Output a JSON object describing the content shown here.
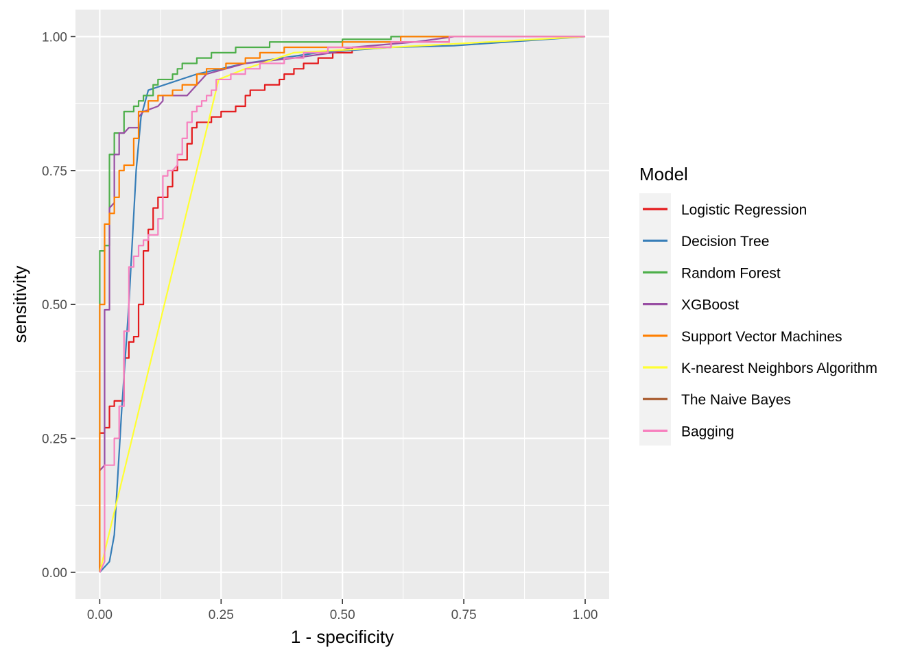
{
  "chart_data": {
    "type": "line",
    "xlabel": "1 - specificity",
    "ylabel": "sensitivity",
    "xlim": [
      0,
      1
    ],
    "ylim": [
      0,
      1
    ],
    "x_ticks": [
      "0.00",
      "0.25",
      "0.50",
      "0.75",
      "1.00"
    ],
    "y_ticks": [
      "0.00",
      "0.25",
      "0.50",
      "0.75",
      "1.00"
    ],
    "grid": true,
    "legend": {
      "title": "Model",
      "placement": "right"
    },
    "series": [
      {
        "name": "Logistic Regression",
        "color": "#E41A1C",
        "points": [
          [
            0,
            0
          ],
          [
            0,
            0.26
          ],
          [
            0.01,
            0.26
          ],
          [
            0.01,
            0.27
          ],
          [
            0.02,
            0.27
          ],
          [
            0.02,
            0.31
          ],
          [
            0.03,
            0.31
          ],
          [
            0.03,
            0.32
          ],
          [
            0.05,
            0.32
          ],
          [
            0.05,
            0.4
          ],
          [
            0.06,
            0.4
          ],
          [
            0.06,
            0.43
          ],
          [
            0.07,
            0.43
          ],
          [
            0.07,
            0.44
          ],
          [
            0.08,
            0.44
          ],
          [
            0.08,
            0.5
          ],
          [
            0.09,
            0.5
          ],
          [
            0.09,
            0.6
          ],
          [
            0.1,
            0.6
          ],
          [
            0.1,
            0.64
          ],
          [
            0.11,
            0.64
          ],
          [
            0.11,
            0.68
          ],
          [
            0.12,
            0.68
          ],
          [
            0.12,
            0.7
          ],
          [
            0.14,
            0.7
          ],
          [
            0.14,
            0.72
          ],
          [
            0.15,
            0.72
          ],
          [
            0.15,
            0.75
          ],
          [
            0.16,
            0.75
          ],
          [
            0.16,
            0.77
          ],
          [
            0.18,
            0.77
          ],
          [
            0.18,
            0.8
          ],
          [
            0.19,
            0.8
          ],
          [
            0.19,
            0.83
          ],
          [
            0.2,
            0.83
          ],
          [
            0.2,
            0.84
          ],
          [
            0.23,
            0.84
          ],
          [
            0.23,
            0.85
          ],
          [
            0.25,
            0.85
          ],
          [
            0.25,
            0.86
          ],
          [
            0.28,
            0.86
          ],
          [
            0.28,
            0.87
          ],
          [
            0.3,
            0.87
          ],
          [
            0.3,
            0.89
          ],
          [
            0.31,
            0.89
          ],
          [
            0.31,
            0.9
          ],
          [
            0.34,
            0.9
          ],
          [
            0.34,
            0.91
          ],
          [
            0.37,
            0.91
          ],
          [
            0.37,
            0.92
          ],
          [
            0.38,
            0.92
          ],
          [
            0.38,
            0.93
          ],
          [
            0.4,
            0.93
          ],
          [
            0.4,
            0.94
          ],
          [
            0.42,
            0.94
          ],
          [
            0.42,
            0.95
          ],
          [
            0.45,
            0.95
          ],
          [
            0.45,
            0.96
          ],
          [
            0.48,
            0.96
          ],
          [
            0.48,
            0.97
          ],
          [
            0.52,
            0.97
          ],
          [
            0.52,
            0.98
          ],
          [
            0.6,
            0.98
          ],
          [
            0.6,
            0.99
          ],
          [
            0.72,
            0.99
          ],
          [
            0.72,
            1.0
          ],
          [
            1,
            1
          ]
        ]
      },
      {
        "name": "Decision Tree",
        "color": "#377EB8",
        "points": [
          [
            0,
            0
          ],
          [
            0.02,
            0.02
          ],
          [
            0.03,
            0.07
          ],
          [
            0.045,
            0.3
          ],
          [
            0.06,
            0.5
          ],
          [
            0.075,
            0.75
          ],
          [
            0.085,
            0.85
          ],
          [
            0.1,
            0.9
          ],
          [
            0.2,
            0.93
          ],
          [
            0.3,
            0.95
          ],
          [
            0.45,
            0.97
          ],
          [
            0.6,
            0.98
          ],
          [
            0.73,
            0.983
          ],
          [
            1,
            1
          ]
        ]
      },
      {
        "name": "Random Forest",
        "color": "#4DAF4A",
        "points": [
          [
            0,
            0
          ],
          [
            0,
            0.6
          ],
          [
            0.01,
            0.6
          ],
          [
            0.01,
            0.61
          ],
          [
            0.02,
            0.61
          ],
          [
            0.02,
            0.78
          ],
          [
            0.03,
            0.78
          ],
          [
            0.03,
            0.82
          ],
          [
            0.05,
            0.82
          ],
          [
            0.05,
            0.86
          ],
          [
            0.06,
            0.86
          ],
          [
            0.07,
            0.86
          ],
          [
            0.07,
            0.87
          ],
          [
            0.08,
            0.87
          ],
          [
            0.08,
            0.88
          ],
          [
            0.09,
            0.88
          ],
          [
            0.09,
            0.89
          ],
          [
            0.11,
            0.89
          ],
          [
            0.11,
            0.91
          ],
          [
            0.12,
            0.91
          ],
          [
            0.12,
            0.92
          ],
          [
            0.15,
            0.92
          ],
          [
            0.15,
            0.93
          ],
          [
            0.16,
            0.93
          ],
          [
            0.16,
            0.94
          ],
          [
            0.17,
            0.94
          ],
          [
            0.17,
            0.95
          ],
          [
            0.2,
            0.95
          ],
          [
            0.2,
            0.96
          ],
          [
            0.23,
            0.96
          ],
          [
            0.23,
            0.97
          ],
          [
            0.28,
            0.97
          ],
          [
            0.28,
            0.98
          ],
          [
            0.35,
            0.98
          ],
          [
            0.35,
            0.99
          ],
          [
            0.5,
            0.99
          ],
          [
            0.5,
            0.995
          ],
          [
            0.6,
            0.995
          ],
          [
            0.6,
            1.0
          ],
          [
            1,
            1
          ]
        ]
      },
      {
        "name": "XGBoost",
        "color": "#984EA3",
        "points": [
          [
            0,
            0
          ],
          [
            0,
            0.19
          ],
          [
            0.01,
            0.2
          ],
          [
            0.01,
            0.49
          ],
          [
            0.02,
            0.49
          ],
          [
            0.02,
            0.68
          ],
          [
            0.03,
            0.69
          ],
          [
            0.03,
            0.78
          ],
          [
            0.04,
            0.78
          ],
          [
            0.04,
            0.82
          ],
          [
            0.05,
            0.82
          ],
          [
            0.06,
            0.83
          ],
          [
            0.08,
            0.83
          ],
          [
            0.08,
            0.85
          ],
          [
            0.09,
            0.86
          ],
          [
            0.12,
            0.87
          ],
          [
            0.13,
            0.88
          ],
          [
            0.13,
            0.89
          ],
          [
            0.18,
            0.89
          ],
          [
            0.2,
            0.91
          ],
          [
            0.22,
            0.93
          ],
          [
            0.3,
            0.95
          ],
          [
            0.4,
            0.96
          ],
          [
            0.48,
            0.97
          ],
          [
            0.52,
            0.98
          ],
          [
            0.65,
            0.99
          ],
          [
            0.73,
            1.0
          ],
          [
            1,
            1
          ]
        ]
      },
      {
        "name": "Support Vector Machines",
        "color": "#FF7F00",
        "points": [
          [
            0,
            0
          ],
          [
            0,
            0.5
          ],
          [
            0.01,
            0.5
          ],
          [
            0.01,
            0.65
          ],
          [
            0.02,
            0.65
          ],
          [
            0.02,
            0.67
          ],
          [
            0.03,
            0.67
          ],
          [
            0.03,
            0.7
          ],
          [
            0.04,
            0.7
          ],
          [
            0.04,
            0.75
          ],
          [
            0.05,
            0.75
          ],
          [
            0.05,
            0.76
          ],
          [
            0.06,
            0.76
          ],
          [
            0.07,
            0.76
          ],
          [
            0.07,
            0.81
          ],
          [
            0.08,
            0.81
          ],
          [
            0.08,
            0.86
          ],
          [
            0.1,
            0.86
          ],
          [
            0.1,
            0.88
          ],
          [
            0.12,
            0.88
          ],
          [
            0.12,
            0.89
          ],
          [
            0.15,
            0.89
          ],
          [
            0.15,
            0.9
          ],
          [
            0.17,
            0.9
          ],
          [
            0.17,
            0.91
          ],
          [
            0.2,
            0.91
          ],
          [
            0.2,
            0.93
          ],
          [
            0.22,
            0.93
          ],
          [
            0.22,
            0.94
          ],
          [
            0.26,
            0.94
          ],
          [
            0.26,
            0.95
          ],
          [
            0.3,
            0.95
          ],
          [
            0.3,
            0.96
          ],
          [
            0.33,
            0.96
          ],
          [
            0.33,
            0.97
          ],
          [
            0.38,
            0.97
          ],
          [
            0.38,
            0.98
          ],
          [
            0.5,
            0.98
          ],
          [
            0.5,
            0.99
          ],
          [
            0.62,
            0.99
          ],
          [
            0.62,
            1.0
          ],
          [
            1,
            1
          ]
        ]
      },
      {
        "name": "K-nearest Neighbors Algorithm",
        "color": "#FFFF33",
        "points": [
          [
            0,
            0
          ],
          [
            0.245,
            0.92
          ],
          [
            0.3,
            0.94
          ],
          [
            0.4,
            0.97
          ],
          [
            0.6,
            0.98
          ],
          [
            1,
            1
          ]
        ]
      },
      {
        "name": "The Naive Bayes",
        "color": "#A65628",
        "points": []
      },
      {
        "name": "Bagging",
        "color": "#F781BF",
        "points": [
          [
            0,
            0
          ],
          [
            0.01,
            0.02
          ],
          [
            0.01,
            0.2
          ],
          [
            0.02,
            0.2
          ],
          [
            0.03,
            0.2
          ],
          [
            0.03,
            0.25
          ],
          [
            0.04,
            0.25
          ],
          [
            0.04,
            0.31
          ],
          [
            0.05,
            0.31
          ],
          [
            0.05,
            0.45
          ],
          [
            0.06,
            0.45
          ],
          [
            0.06,
            0.57
          ],
          [
            0.07,
            0.57
          ],
          [
            0.07,
            0.59
          ],
          [
            0.08,
            0.59
          ],
          [
            0.08,
            0.61
          ],
          [
            0.09,
            0.61
          ],
          [
            0.09,
            0.62
          ],
          [
            0.1,
            0.62
          ],
          [
            0.1,
            0.63
          ],
          [
            0.12,
            0.63
          ],
          [
            0.12,
            0.66
          ],
          [
            0.13,
            0.66
          ],
          [
            0.13,
            0.74
          ],
          [
            0.14,
            0.74
          ],
          [
            0.14,
            0.75
          ],
          [
            0.15,
            0.75
          ],
          [
            0.16,
            0.76
          ],
          [
            0.16,
            0.78
          ],
          [
            0.17,
            0.78
          ],
          [
            0.17,
            0.81
          ],
          [
            0.18,
            0.81
          ],
          [
            0.18,
            0.84
          ],
          [
            0.19,
            0.84
          ],
          [
            0.19,
            0.86
          ],
          [
            0.2,
            0.86
          ],
          [
            0.2,
            0.87
          ],
          [
            0.21,
            0.87
          ],
          [
            0.21,
            0.88
          ],
          [
            0.22,
            0.88
          ],
          [
            0.22,
            0.89
          ],
          [
            0.23,
            0.89
          ],
          [
            0.23,
            0.9
          ],
          [
            0.24,
            0.9
          ],
          [
            0.24,
            0.92
          ],
          [
            0.27,
            0.92
          ],
          [
            0.27,
            0.93
          ],
          [
            0.3,
            0.93
          ],
          [
            0.3,
            0.94
          ],
          [
            0.33,
            0.94
          ],
          [
            0.33,
            0.95
          ],
          [
            0.38,
            0.95
          ],
          [
            0.38,
            0.96
          ],
          [
            0.42,
            0.96
          ],
          [
            0.42,
            0.97
          ],
          [
            0.47,
            0.97
          ],
          [
            0.47,
            0.98
          ],
          [
            0.6,
            0.98
          ],
          [
            0.6,
            0.99
          ],
          [
            0.72,
            0.99
          ],
          [
            0.72,
            1.0
          ],
          [
            1,
            1
          ]
        ]
      }
    ]
  }
}
